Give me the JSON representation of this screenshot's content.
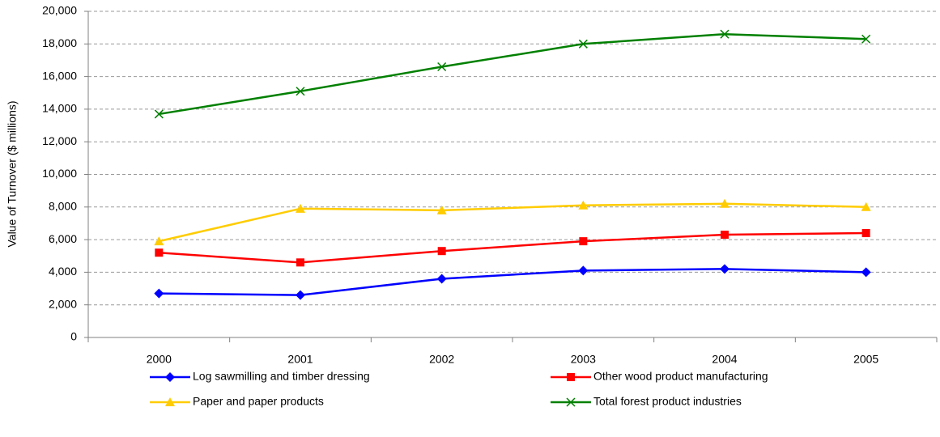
{
  "chart_data": {
    "type": "line",
    "y_label": "Value of Turnover ($ millions)",
    "categories": [
      "2000",
      "2001",
      "2002",
      "2003",
      "2004",
      "2005"
    ],
    "series": [
      {
        "name": "Log sawmilling and timber dressing",
        "color": "#0000ff",
        "marker": "diamond",
        "values": [
          2700,
          2600,
          3600,
          4100,
          4200,
          4000
        ]
      },
      {
        "name": "Other wood product manufacturing",
        "color": "#ff0000",
        "marker": "square",
        "values": [
          5200,
          4600,
          5300,
          5900,
          6300,
          6400
        ]
      },
      {
        "name": "Paper and paper products",
        "color": "#ffcc00",
        "marker": "triangle",
        "values": [
          5900,
          7900,
          7800,
          8100,
          8200,
          8000
        ]
      },
      {
        "name": "Total forest product industries",
        "color": "#008000",
        "marker": "x",
        "values": [
          13700,
          15100,
          16600,
          18000,
          18600,
          18300
        ]
      }
    ],
    "ylim": [
      0,
      20000
    ],
    "yticks": [
      0,
      {
        "value": 2000,
        "label": "2,000"
      },
      {
        "value": 4000,
        "label": "4,000"
      },
      {
        "value": 6000,
        "label": "6,000"
      },
      {
        "value": 8000,
        "label": "8,000"
      },
      {
        "value": 10000,
        "label": "10,000"
      },
      {
        "value": 12000,
        "label": "12,000"
      },
      {
        "value": 14000,
        "label": "14,000"
      },
      {
        "value": 16000,
        "label": "16,000"
      },
      {
        "value": 18000,
        "label": "18,000"
      },
      {
        "value": 20000,
        "label": "20,000"
      }
    ],
    "grid": true
  }
}
